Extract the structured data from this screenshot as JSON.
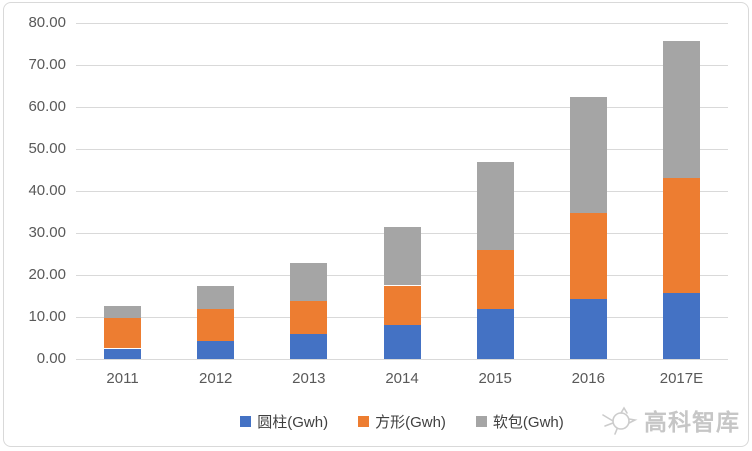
{
  "chart_data": {
    "type": "bar",
    "stacked": true,
    "title": "",
    "xlabel": "",
    "ylabel": "",
    "categories": [
      "2011",
      "2012",
      "2013",
      "2014",
      "2015",
      "2016",
      "2017E"
    ],
    "series": [
      {
        "name": "圆柱(Gwh)",
        "color": "#4472C4",
        "values": [
          2.5,
          4.3,
          6.0,
          8.2,
          11.8,
          14.4,
          15.6
        ]
      },
      {
        "name": "方形(Gwh)",
        "color": "#ED7D31",
        "values": [
          7.2,
          7.6,
          7.7,
          9.3,
          14.2,
          20.4,
          27.4
        ]
      },
      {
        "name": "软包(Gwh)",
        "color": "#A5A5A5",
        "values": [
          3.0,
          5.6,
          9.1,
          14.0,
          20.8,
          27.6,
          32.7
        ]
      }
    ],
    "ylim": [
      0,
      80
    ],
    "ytick_labels": [
      "0.00",
      "10.00",
      "20.00",
      "30.00",
      "40.00",
      "50.00",
      "60.00",
      "70.00",
      "80.00"
    ],
    "grid": true,
    "legend_position": "bottom"
  },
  "colors": {
    "grid": "#D9D9D9",
    "axis_text": "#595959",
    "legend_text": "#404040",
    "watermark": "#C6C6C6",
    "frame": "#D9D9D9",
    "background": "#FFFFFF"
  },
  "watermark": {
    "text": "高科智库",
    "icon": "rooster-sketch-icon"
  }
}
